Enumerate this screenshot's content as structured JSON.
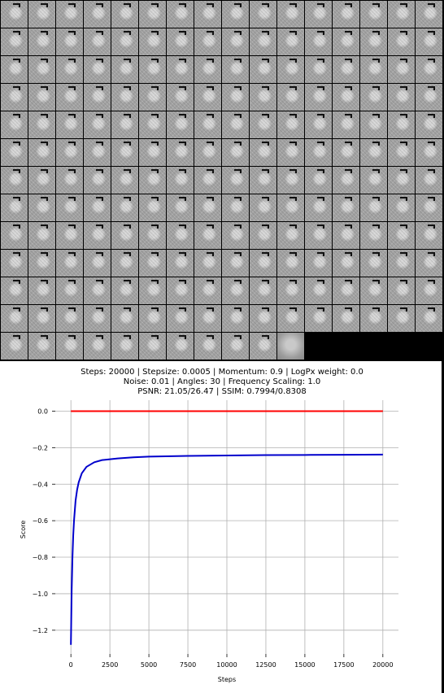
{
  "colors": {
    "background": "#ffffff",
    "grid": "#b0b0b0",
    "series_red": "#ff0000",
    "series_blue": "#0000cc",
    "tile_panel": "#000000"
  },
  "tiles": {
    "rows": 13,
    "cols": 16,
    "count": 203,
    "highlighted_index": 202,
    "highlighted_style": "blurred"
  },
  "chart_data": {
    "type": "line",
    "title": "Steps: 20000 | Stepsize: 0.0005 | Momentum: 0.9 | LogPx weight: 0.0",
    "subtitle": "Noise: 0.01 | Angles: 30 | Frequency Scaling: 1.0",
    "subtitle2": "PSNR: 21.05/26.47 | SSIM: 0.7994/0.8308",
    "xlabel": "Steps",
    "ylabel": "Score",
    "xlim": [
      -1000,
      21000
    ],
    "ylim": [
      -1.33,
      0.06
    ],
    "grid": true,
    "x_ticks": [
      0,
      2500,
      5000,
      7500,
      10000,
      12500,
      15000,
      17500,
      20000
    ],
    "y_ticks": [
      0.0,
      -0.2,
      -0.4,
      -0.6,
      -0.8,
      -1.0,
      -1.2
    ],
    "x_tick_labels": [
      "0",
      "2500",
      "5000",
      "7500",
      "10000",
      "12500",
      "15000",
      "17500",
      "20000"
    ],
    "y_tick_labels": [
      "0.0",
      "−0.2",
      "−0.4",
      "−0.6",
      "−0.8",
      "−1.0",
      "−1.2"
    ],
    "series": [
      {
        "color": "#ff0000",
        "x": [
          0,
          20000
        ],
        "y": [
          0.0,
          0.0
        ]
      },
      {
        "color": "#0000cc",
        "x": [
          0,
          50,
          100,
          150,
          200,
          300,
          400,
          500,
          700,
          1000,
          1500,
          2000,
          3000,
          4000,
          5000,
          7500,
          10000,
          12500,
          15000,
          17500,
          20000
        ],
        "y": [
          -1.28,
          -0.98,
          -0.8,
          -0.68,
          -0.6,
          -0.49,
          -0.43,
          -0.39,
          -0.34,
          -0.305,
          -0.28,
          -0.268,
          -0.259,
          -0.253,
          -0.249,
          -0.245,
          -0.243,
          -0.241,
          -0.24,
          -0.239,
          -0.238
        ]
      }
    ]
  }
}
